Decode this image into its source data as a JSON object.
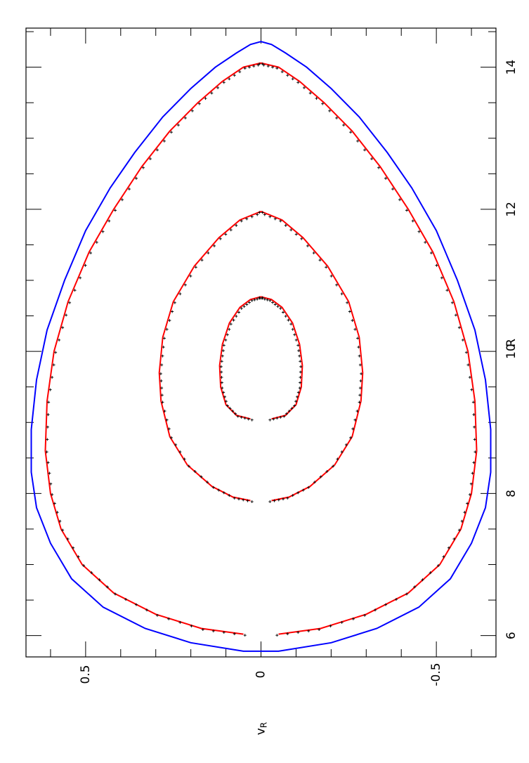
{
  "chart_data": {
    "type": "line",
    "orientation": "rotated-90",
    "xlabel": "R",
    "ylabel": "v_R",
    "xlim": [
      5.7,
      14.55
    ],
    "ylim": [
      -0.67,
      0.67
    ],
    "x_ticks": [
      6,
      8,
      10,
      12,
      14
    ],
    "x_tick_labels": [
      "6",
      "8",
      "10",
      "12",
      "14"
    ],
    "y_ticks": [
      0.5,
      0,
      -0.5
    ],
    "y_tick_labels": [
      "0.5",
      "0",
      "-0.5"
    ],
    "colors": {
      "outer_boundary": "#0000ff",
      "orbits": "#ff0000",
      "points": "#000000",
      "frame": "#000000"
    },
    "series": [
      {
        "color": "#0000ff",
        "x": [
          5.78,
          5.9,
          6.1,
          6.4,
          6.8,
          7.3,
          7.8,
          8.3,
          8.9,
          9.6,
          10.3,
          11.0,
          11.7,
          12.3,
          12.8,
          13.3,
          13.7,
          14.0,
          14.2,
          14.32,
          14.36
        ],
        "y": [
          0.05,
          0.2,
          0.33,
          0.45,
          0.54,
          0.6,
          0.64,
          0.655,
          0.655,
          0.64,
          0.61,
          0.56,
          0.5,
          0.43,
          0.36,
          0.28,
          0.2,
          0.13,
          0.07,
          0.03,
          0.0
        ]
      },
      {
        "color": "#ff0000",
        "x": [
          6.02,
          6.1,
          6.3,
          6.6,
          7.0,
          7.5,
          8.0,
          8.6,
          9.3,
          10.0,
          10.7,
          11.4,
          12.0,
          12.6,
          13.1,
          13.5,
          13.8,
          14.0,
          14.06
        ],
        "y": [
          0.05,
          0.17,
          0.3,
          0.42,
          0.51,
          0.57,
          0.6,
          0.615,
          0.61,
          0.59,
          0.55,
          0.49,
          0.42,
          0.34,
          0.26,
          0.18,
          0.11,
          0.05,
          0.0
        ]
      },
      {
        "color": "#ff0000",
        "x": [
          7.9,
          7.95,
          8.1,
          8.4,
          8.8,
          9.3,
          9.7,
          10.2,
          10.7,
          11.2,
          11.6,
          11.85,
          11.97
        ],
        "y": [
          0.03,
          0.08,
          0.14,
          0.21,
          0.26,
          0.285,
          0.29,
          0.28,
          0.25,
          0.19,
          0.12,
          0.06,
          0.0
        ]
      },
      {
        "color": "#ff0000",
        "x": [
          9.05,
          9.1,
          9.25,
          9.5,
          9.8,
          10.1,
          10.4,
          10.62,
          10.73,
          10.77
        ],
        "y": [
          0.03,
          0.07,
          0.1,
          0.115,
          0.118,
          0.11,
          0.09,
          0.06,
          0.03,
          0.0
        ]
      }
    ]
  }
}
